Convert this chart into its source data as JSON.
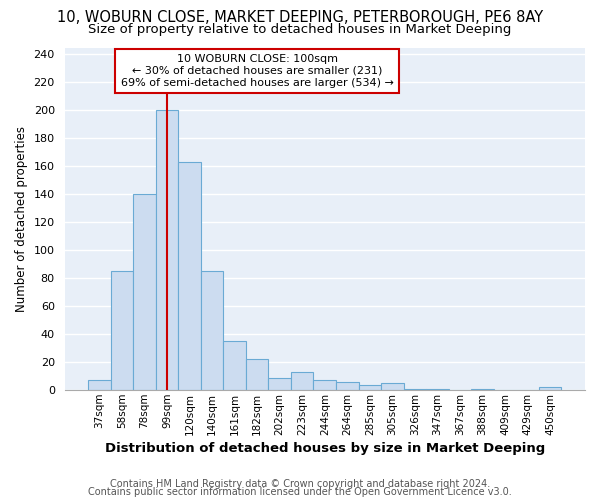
{
  "title1": "10, WOBURN CLOSE, MARKET DEEPING, PETERBOROUGH, PE6 8AY",
  "title2": "Size of property relative to detached houses in Market Deeping",
  "xlabel": "Distribution of detached houses by size in Market Deeping",
  "ylabel": "Number of detached properties",
  "categories": [
    "37sqm",
    "58sqm",
    "78sqm",
    "99sqm",
    "120sqm",
    "140sqm",
    "161sqm",
    "182sqm",
    "202sqm",
    "223sqm",
    "244sqm",
    "264sqm",
    "285sqm",
    "305sqm",
    "326sqm",
    "347sqm",
    "367sqm",
    "388sqm",
    "409sqm",
    "429sqm",
    "450sqm"
  ],
  "values": [
    7,
    85,
    140,
    200,
    163,
    85,
    35,
    22,
    9,
    13,
    7,
    6,
    4,
    5,
    1,
    1,
    0,
    1,
    0,
    0,
    2
  ],
  "bar_color": "#ccdcf0",
  "bar_edge_color": "#6aaad4",
  "ylim": [
    0,
    245
  ],
  "yticks": [
    0,
    20,
    40,
    60,
    80,
    100,
    120,
    140,
    160,
    180,
    200,
    220,
    240
  ],
  "property_label": "10 WOBURN CLOSE: 100sqm",
  "annotation_line1": "← 30% of detached houses are smaller (231)",
  "annotation_line2": "69% of semi-detached houses are larger (534) →",
  "annotation_box_color": "#cc0000",
  "vline_color": "#cc0000",
  "vline_x_index": 3,
  "footer_line1": "Contains HM Land Registry data © Crown copyright and database right 2024.",
  "footer_line2": "Contains public sector information licensed under the Open Government Licence v3.0.",
  "bg_color": "#e8eff8",
  "grid_color": "#ffffff",
  "title_fontsize": 10.5,
  "subtitle_fontsize": 9.5
}
